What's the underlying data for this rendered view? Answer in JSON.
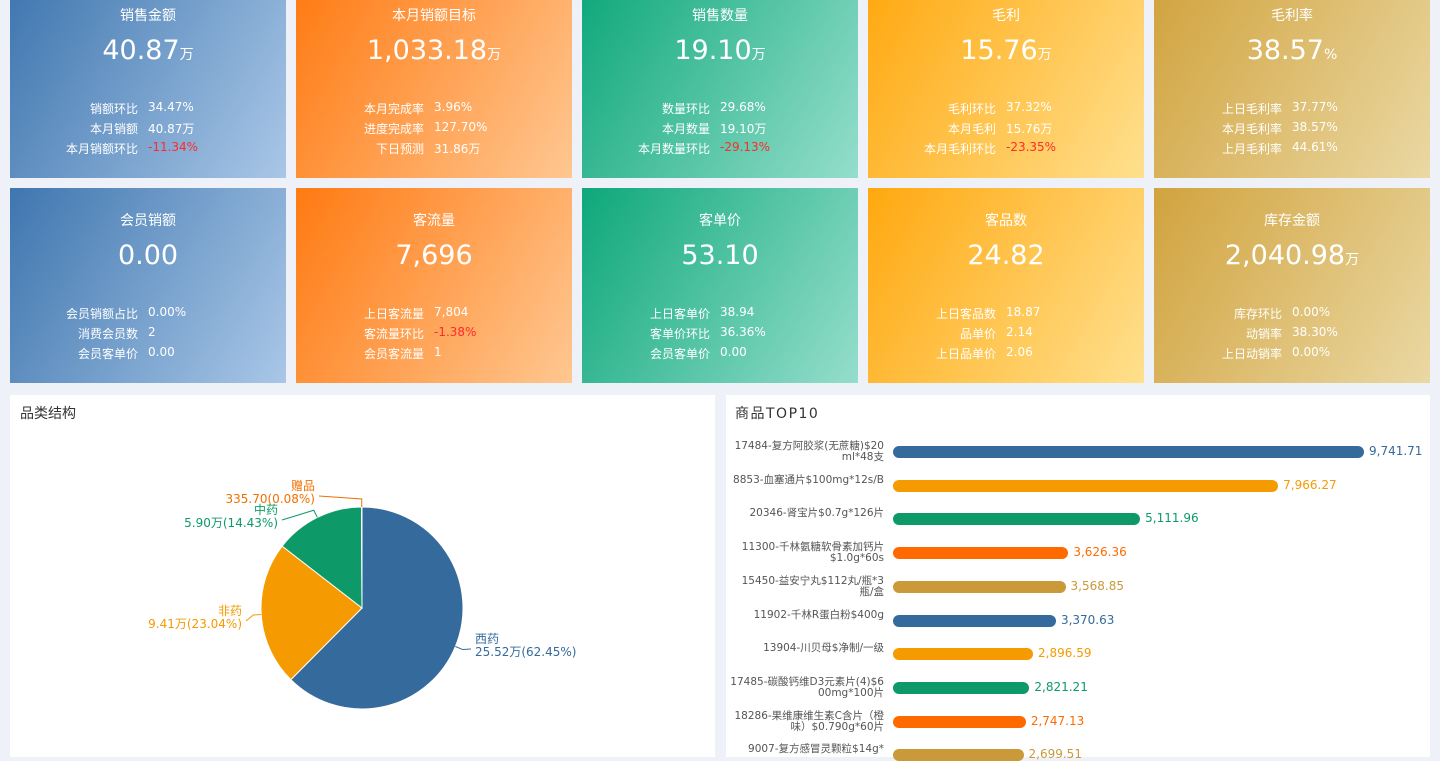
{
  "cards": [
    {
      "title": "销售金额",
      "value": "40.87",
      "unit": "万",
      "rows": [
        {
          "label": "销额环比",
          "value": "34.47%"
        },
        {
          "label": "本月销额",
          "value": "40.87万"
        },
        {
          "label": "本月销额环比",
          "value": "-11.34%"
        }
      ]
    },
    {
      "title": "本月销额目标",
      "value": "1,033.18",
      "unit": "万",
      "rows": [
        {
          "label": "本月完成率",
          "value": "3.96%"
        },
        {
          "label": "进度完成率",
          "value": "127.70%"
        },
        {
          "label": "下日预测",
          "value": "31.86万"
        }
      ]
    },
    {
      "title": "销售数量",
      "value": "19.10",
      "unit": "万",
      "rows": [
        {
          "label": "数量环比",
          "value": "29.68%"
        },
        {
          "label": "本月数量",
          "value": "19.10万"
        },
        {
          "label": "本月数量环比",
          "value": "-29.13%"
        }
      ]
    },
    {
      "title": "毛利",
      "value": "15.76",
      "unit": "万",
      "rows": [
        {
          "label": "毛利环比",
          "value": "37.32%"
        },
        {
          "label": "本月毛利",
          "value": "15.76万"
        },
        {
          "label": "本月毛利环比",
          "value": "-23.35%"
        }
      ]
    },
    {
      "title": "毛利率",
      "value": "38.57",
      "unit": "%",
      "rows": [
        {
          "label": "上日毛利率",
          "value": "37.77%"
        },
        {
          "label": "本月毛利率",
          "value": "38.57%"
        },
        {
          "label": "上月毛利率",
          "value": "44.61%"
        }
      ]
    },
    {
      "title": "会员销额",
      "value": "0.00",
      "rows": [
        {
          "label": "会员销额占比",
          "value": "0.00%"
        },
        {
          "label": "消费会员数",
          "value": "2"
        },
        {
          "label": "会员客单价",
          "value": "0.00"
        }
      ]
    },
    {
      "title": "客流量",
      "value": "7,696",
      "rows": [
        {
          "label": "上日客流量",
          "value": "7,804"
        },
        {
          "label": "客流量环比",
          "value": "-1.38%"
        },
        {
          "label": "会员客流量",
          "value": "1"
        }
      ]
    },
    {
      "title": "客单价",
      "value": "53.10",
      "rows": [
        {
          "label": "上日客单价",
          "value": "38.94"
        },
        {
          "label": "客单价环比",
          "value": "36.36%"
        },
        {
          "label": "会员客单价",
          "value": "0.00"
        }
      ]
    },
    {
      "title": "客品数",
      "value": "24.82",
      "rows": [
        {
          "label": "上日客品数",
          "value": "18.87"
        },
        {
          "label": "品单价",
          "value": "2.14"
        },
        {
          "label": "上日品单价",
          "value": "2.06"
        }
      ]
    },
    {
      "title": "库存金额",
      "value": "2,040.98",
      "unit": "万",
      "rows": [
        {
          "label": "库存环比",
          "value": "0.00%"
        },
        {
          "label": "动销率",
          "value": "38.30%"
        },
        {
          "label": "上日动销率",
          "value": "0.00%"
        }
      ]
    }
  ],
  "pie_chart": {
    "type": "pie",
    "title": "品类结构",
    "categories": [
      "西药",
      "非药",
      "中药",
      "赠品"
    ],
    "values": [
      62.45,
      23.04,
      14.43,
      0.08
    ],
    "value_labels": [
      "25.52万(62.45%)",
      "9.41万(23.04%)",
      "5.90万(14.43%)",
      "335.70(0.08%)"
    ],
    "colors": [
      "#356a9c",
      "#f59a00",
      "#0d9a68",
      "#f07000"
    ]
  },
  "bar_chart": {
    "type": "bar",
    "title": "商品TOP10",
    "categories": [
      "17484-复方阿胶浆(无蔗糖)$20ml*48支",
      "8853-血塞通片$100mg*12s/B",
      "20346-肾宝片$0.7g*126片",
      "11300-千林氨糖软骨素加钙片$1.0g*60s",
      "15450-益安宁丸$112丸/瓶*3瓶/盒",
      "11902-千林R蛋白粉$400g",
      "13904-川贝母$净制/一级",
      "17485-碳酸钙维D3元素片(4)$600mg*100片",
      "18286-果维康维生素C含片（橙味）$0.790g*60片",
      "9007-复方感冒灵颗粒$14g*"
    ],
    "values": [
      9741.71,
      7966.27,
      5111.96,
      3626.36,
      3568.85,
      3370.63,
      2896.59,
      2821.21,
      2747.13,
      2699.51
    ],
    "value_labels": [
      "9,741.71",
      "7,966.27",
      "5,111.96",
      "3,626.36",
      "3,568.85",
      "3,370.63",
      "2,896.59",
      "2,821.21",
      "2,747.13",
      "2,699.51"
    ],
    "colors": [
      "#356a9c",
      "#f59a00",
      "#0d9a68",
      "#ff6a00",
      "#c9993a"
    ]
  }
}
